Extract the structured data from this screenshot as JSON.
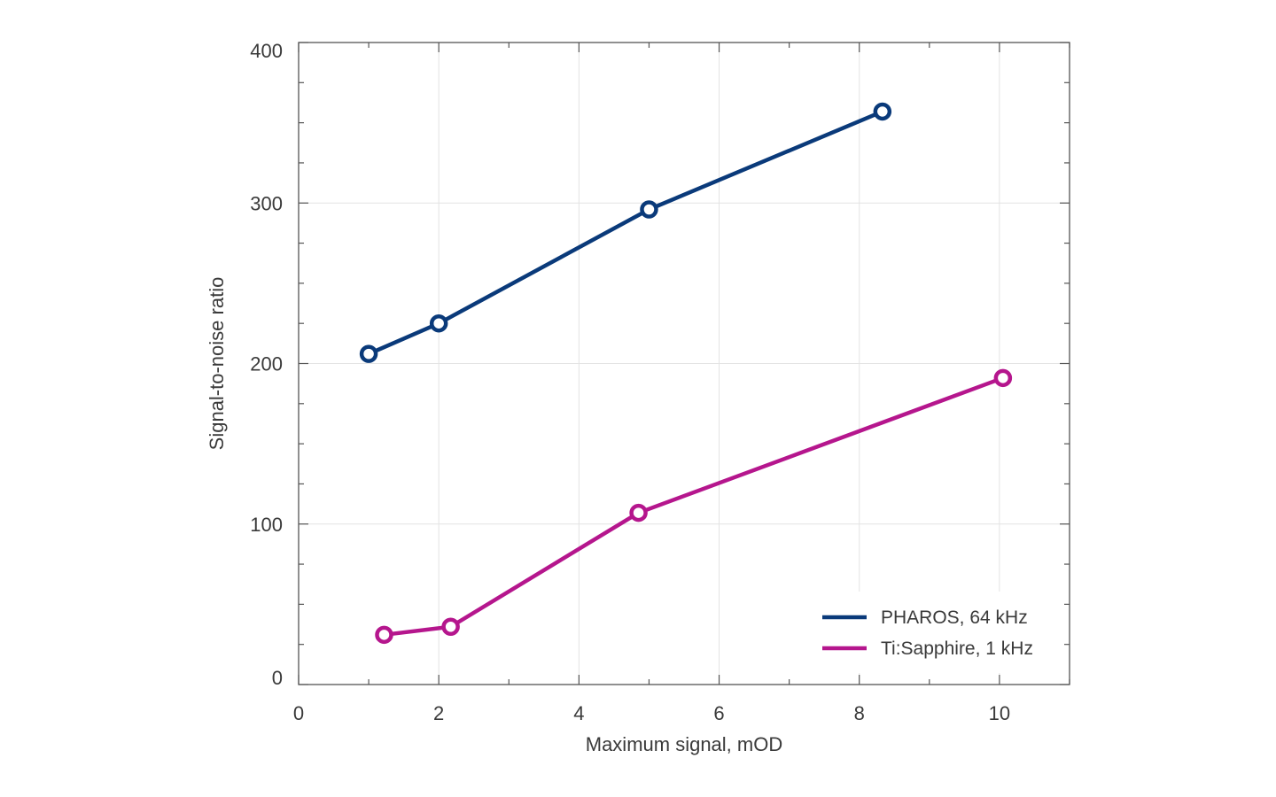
{
  "chart_data": {
    "type": "line",
    "xlabel": "Maximum signal, mOD",
    "ylabel": "Signal-to-noise ratio",
    "xlim": [
      0,
      11
    ],
    "ylim": [
      0,
      400
    ],
    "x_ticks": [
      0,
      2,
      4,
      6,
      8,
      10
    ],
    "y_ticks": [
      0,
      100,
      200,
      300,
      400
    ],
    "x_tick_labels": [
      "0",
      "2",
      "4",
      "6",
      "8",
      "10"
    ],
    "y_tick_labels": [
      "0",
      "100",
      "200",
      "300",
      "400"
    ],
    "grid": true,
    "legend_position": "bottom-right",
    "series": [
      {
        "name": "PHAROS, 64 kHz",
        "color": "#0a3a7a",
        "x": [
          1.0,
          2.0,
          5.0,
          8.33
        ],
        "y": [
          206,
          225,
          296,
          357
        ]
      },
      {
        "name": "Ti:Sapphire, 1 kHz",
        "color": "#b5168d",
        "x": [
          1.22,
          2.17,
          4.85,
          10.05
        ],
        "y": [
          31,
          36,
          107,
          191
        ]
      }
    ]
  }
}
